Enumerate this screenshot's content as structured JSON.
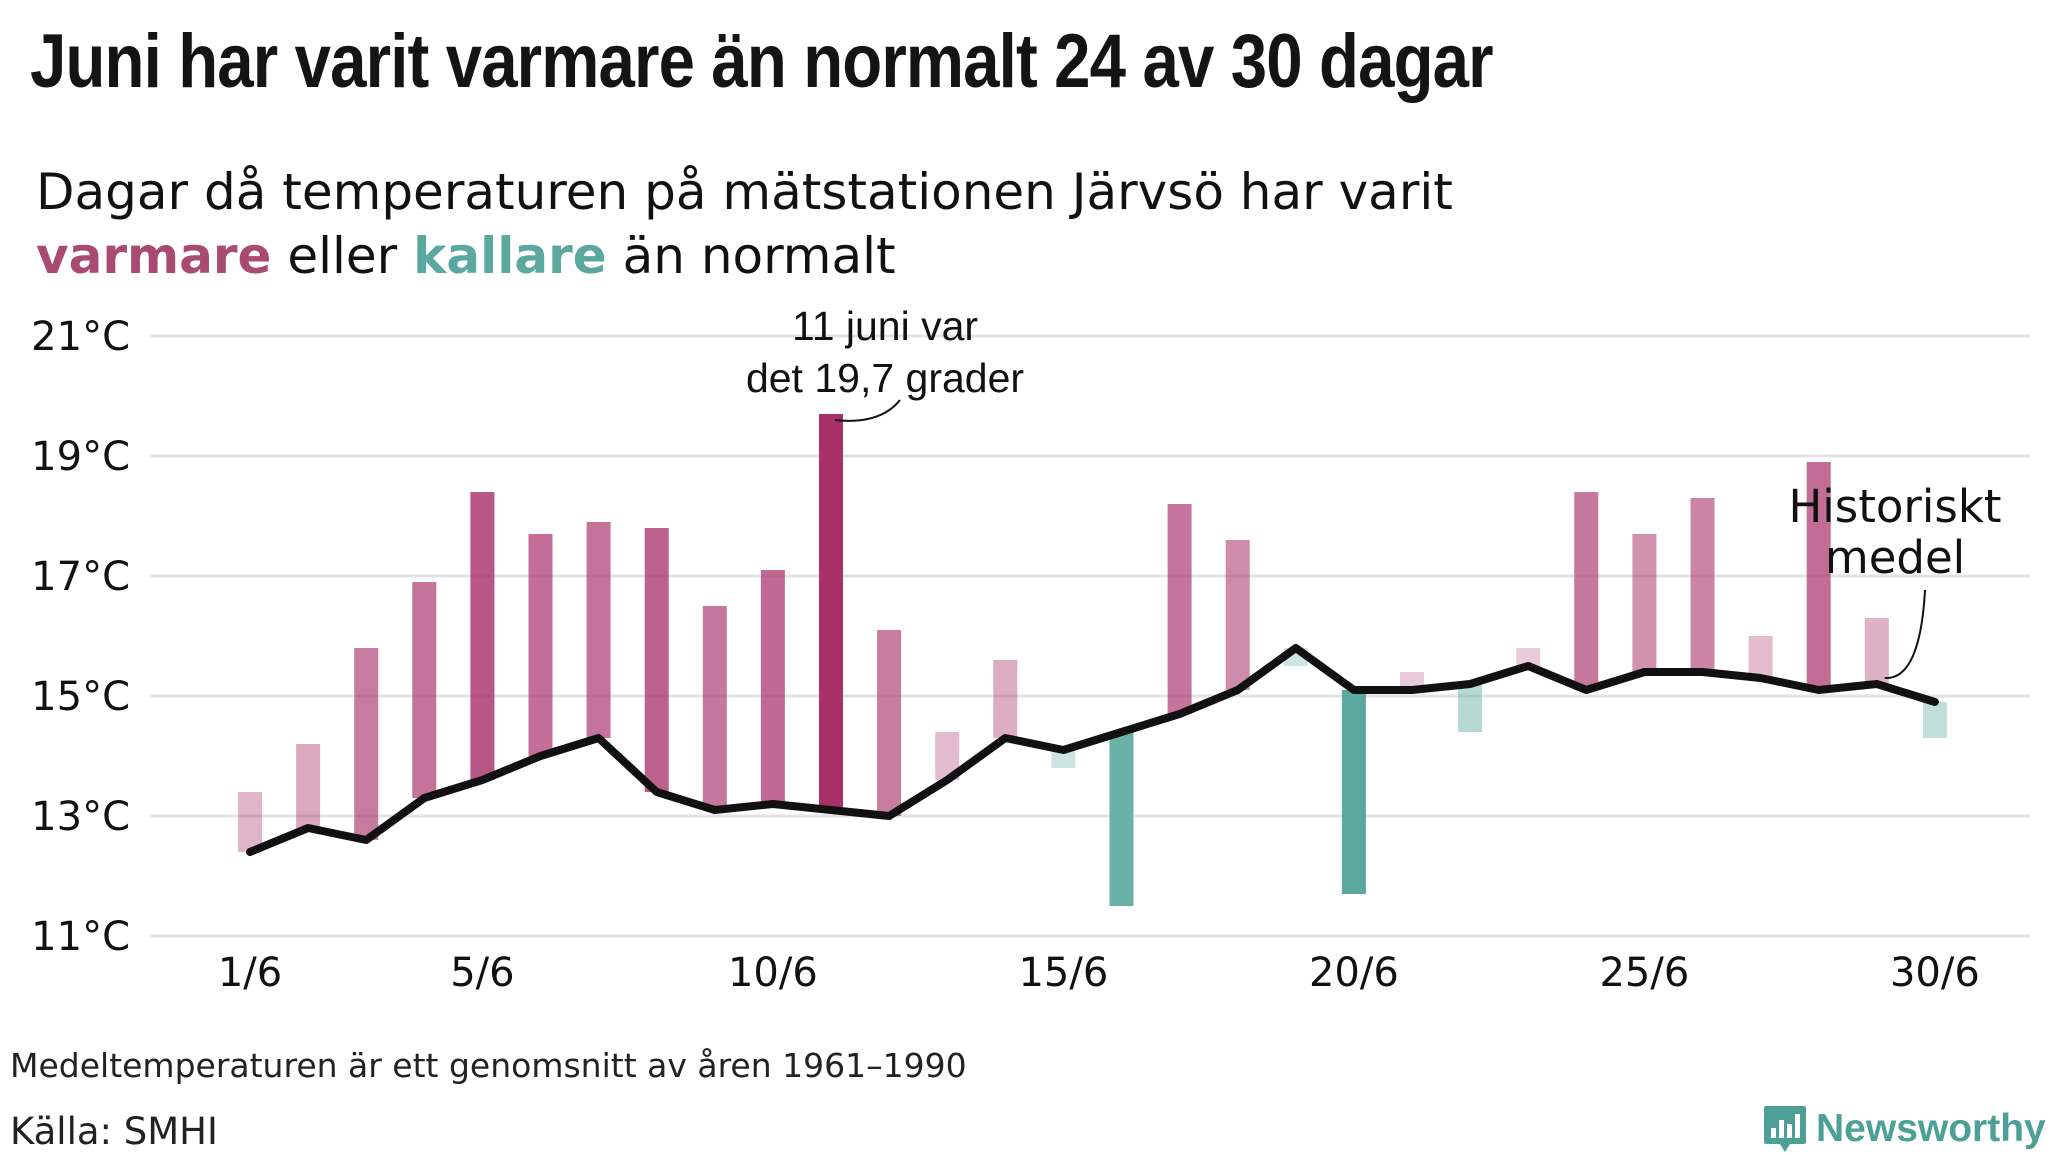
{
  "title": "Juni har varit varmare än normalt 24 av 30 dagar",
  "subtitle": {
    "line1": "Dagar då temperaturen på mätstationen Järvsö har varit",
    "warm_word": "varmare",
    "middle": "eller",
    "cold_word": "kallare",
    "end": "än normalt"
  },
  "footnote": "Medeltemperaturen är ett genomsnitt av åren 1961–1990",
  "source": "Källa: SMHI",
  "logo": {
    "name": "Newsworthy",
    "icon": "newsworthy-bar-chart-icon"
  },
  "colors": {
    "warmer": "#a8316a",
    "colder": "#5aa89e",
    "average_line": "#111111",
    "gridline": "#e3e3e3",
    "logo": "#4ca095"
  },
  "chart_data": {
    "type": "bar",
    "ylim": [
      11,
      21
    ],
    "yticks": [
      11,
      13,
      15,
      17,
      19,
      21
    ],
    "ytick_labels": [
      "11°C",
      "13°C",
      "15°C",
      "17°C",
      "19°C",
      "21°C"
    ],
    "xtick_days": [
      1,
      5,
      10,
      15,
      20,
      25,
      30
    ],
    "xtick_labels": [
      "1/6",
      "5/6",
      "10/6",
      "15/6",
      "20/6",
      "25/6",
      "30/6"
    ],
    "grid": true,
    "days": [
      1,
      2,
      3,
      4,
      5,
      6,
      7,
      8,
      9,
      10,
      11,
      12,
      13,
      14,
      15,
      16,
      17,
      18,
      19,
      20,
      21,
      22,
      23,
      24,
      25,
      26,
      27,
      28,
      29,
      30
    ],
    "series": [
      {
        "name": "Temperatur",
        "values": [
          13.4,
          14.2,
          15.8,
          16.9,
          18.4,
          17.7,
          17.9,
          17.8,
          16.5,
          17.1,
          19.7,
          16.1,
          14.4,
          15.6,
          13.8,
          11.5,
          18.2,
          17.6,
          15.5,
          11.7,
          15.4,
          14.4,
          15.8,
          18.4,
          17.7,
          18.3,
          16.0,
          18.9,
          16.3,
          14.3
        ]
      },
      {
        "name": "Historiskt medel",
        "values": [
          12.4,
          12.8,
          12.6,
          13.3,
          13.6,
          14.0,
          14.3,
          13.4,
          13.1,
          13.2,
          13.1,
          13.0,
          13.6,
          14.3,
          14.1,
          14.4,
          14.7,
          15.1,
          15.8,
          15.1,
          15.1,
          15.2,
          15.5,
          15.1,
          15.4,
          15.4,
          15.3,
          15.1,
          15.2,
          14.9
        ]
      }
    ],
    "annotations": [
      {
        "day": 11,
        "text_line1": "11 juni var",
        "text_line2": "det 19,7 grader"
      },
      {
        "day": 29,
        "text_line1": "Historiskt",
        "text_line2": "medel"
      }
    ]
  }
}
